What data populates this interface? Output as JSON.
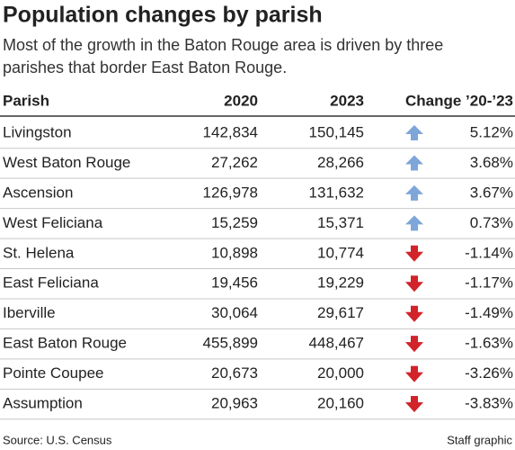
{
  "header": {
    "title": "Population changes by parish",
    "subtitle": [
      "Most of the growth in the Baton Rouge area is driven by three",
      "parishes that border East Baton Rouge."
    ]
  },
  "table": {
    "columns": [
      "Parish",
      "2020",
      "2023",
      "Change ’20-’23"
    ],
    "rows": [
      [
        "Livingston",
        "142,834",
        "150,145",
        "5.12%"
      ],
      [
        "West Baton Rouge",
        "27,262",
        "28,266",
        "3.68%"
      ],
      [
        "Ascension",
        "126,978",
        "131,632",
        "3.67%"
      ],
      [
        "West Feliciana",
        "15,259",
        "15,371",
        "0.73%"
      ],
      [
        "St. Helena",
        "10,898",
        "10,774",
        "-1.14%"
      ],
      [
        "East Feliciana",
        "19,456",
        "19,229",
        "-1.17%"
      ],
      [
        "Iberville",
        "30,064",
        "29,617",
        "-1.49%"
      ],
      [
        "East Baton Rouge",
        "455,899",
        "448,467",
        "-1.63%"
      ],
      [
        "Pointe Coupee",
        "20,673",
        "20,000",
        "-3.26%"
      ],
      [
        "Assumption",
        "20,963",
        "20,160",
        "-3.83%"
      ]
    ]
  },
  "footer": {
    "source": "Source: U.S. Census",
    "credit": "Staff graphic"
  }
}
